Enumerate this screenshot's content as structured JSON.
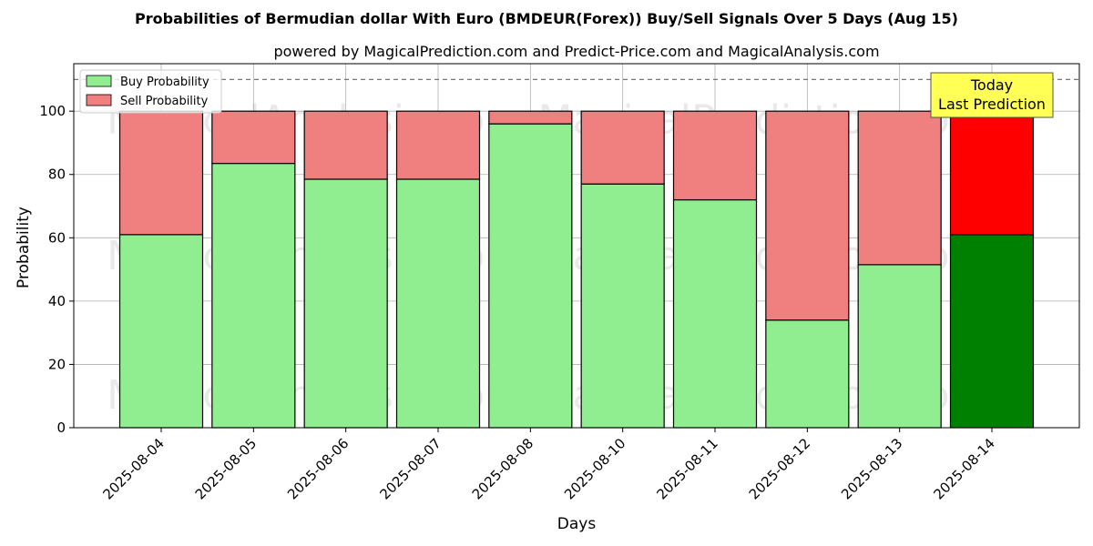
{
  "title": "Probabilities of Bermudian dollar With Euro (BMDEUR(Forex)) Buy/Sell Signals Over 5 Days (Aug 15)",
  "subtitle": "powered by MagicalPrediction.com and Predict-Price.com and MagicalAnalysis.com",
  "watermarks": [
    "MagicalAnalysis.com",
    "MagicalPrediction.com"
  ],
  "annotation": {
    "line1": "Today",
    "line2": "Last Prediction",
    "color": "#ffff55"
  },
  "colors": {
    "buy": "#90ee90",
    "sell": "#f08080",
    "buy_today": "#008000",
    "sell_today": "#ff0000"
  },
  "chart_data": {
    "type": "bar",
    "stacked": true,
    "xlabel": "Days",
    "ylabel": "Probability",
    "ylim": [
      0,
      115
    ],
    "yticks": [
      0,
      20,
      40,
      60,
      80,
      100
    ],
    "reference_line": 110,
    "grid": true,
    "legend_position": "top-left",
    "categories": [
      "2025-08-04",
      "2025-08-05",
      "2025-08-06",
      "2025-08-07",
      "2025-08-08",
      "2025-08-10",
      "2025-08-11",
      "2025-08-12",
      "2025-08-13",
      "2025-08-14"
    ],
    "series": [
      {
        "name": "Buy Probability",
        "values": [
          61,
          83.5,
          78.5,
          78.5,
          96,
          77,
          72,
          34,
          51.5,
          61
        ]
      },
      {
        "name": "Sell Probability",
        "values": [
          39,
          16.5,
          21.5,
          21.5,
          4,
          23,
          28,
          66,
          48.5,
          39
        ]
      }
    ],
    "highlight_index": 9
  }
}
